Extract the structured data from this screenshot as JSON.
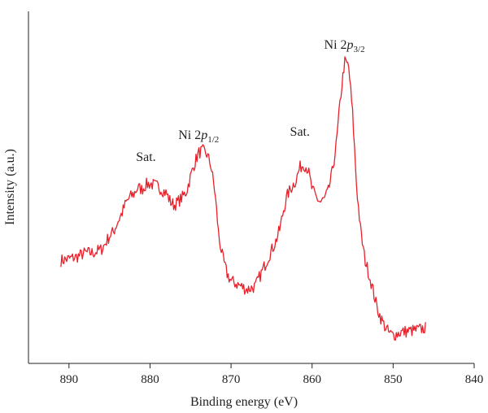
{
  "chart_data": {
    "type": "line",
    "title": "",
    "xlabel": "Binding energy (eV)",
    "ylabel": "Intensity (a.u.)",
    "xlim": [
      895,
      840
    ],
    "ylim": [
      0,
      100
    ],
    "x_reversed": true,
    "y_ticks_shown": false,
    "grid": false,
    "legend": "none",
    "xticks": [
      890,
      880,
      870,
      860,
      850,
      840
    ],
    "xtick_labels": [
      "890",
      "880",
      "870",
      "860",
      "850",
      "840"
    ],
    "line_color": "#e8202a",
    "annotations": [
      {
        "text": "Sat.",
        "x": 880.5,
        "y": 57.5
      },
      {
        "text": "Ni 2p1/2",
        "main": "Ni 2",
        "italic": "p",
        "sub": "1/2",
        "x": 874.0,
        "y": 63.7
      },
      {
        "text": "Sat.",
        "x": 861.5,
        "y": 64.7
      },
      {
        "text": "Ni 2p3/2",
        "main": "Ni 2",
        "italic": "p",
        "sub": "3/2",
        "x": 856.0,
        "y": 89.4
      }
    ],
    "series": [
      {
        "x": [
          891,
          890,
          889,
          888,
          887,
          886,
          885.5,
          885,
          884.5,
          884,
          883.5,
          883,
          882.5,
          882,
          881.5,
          881,
          880.5,
          880,
          879,
          878,
          877.5,
          877,
          876,
          875.5,
          875,
          874.5,
          874,
          873.5,
          873,
          872.5,
          872,
          871.5,
          871,
          870.5,
          870,
          869,
          868,
          867,
          866.5,
          866,
          865.5,
          865,
          864.5,
          864,
          863.5,
          863,
          862.5,
          862,
          861.5,
          861,
          860.5,
          860,
          859.5,
          859,
          858.5,
          858,
          857.5,
          857,
          856.5,
          856,
          855.5,
          855,
          854.5,
          854,
          853.5,
          853,
          852.5,
          852,
          851.5,
          851,
          850.5,
          850,
          849,
          848,
          847,
          846
        ],
        "y": [
          29.2,
          29.7,
          30.3,
          31.4,
          31.4,
          32.4,
          34.1,
          36.2,
          37.4,
          40.2,
          42.5,
          45.5,
          47.2,
          48.1,
          50.0,
          49.4,
          50.8,
          51.1,
          50.2,
          48.4,
          46.0,
          44.9,
          47.2,
          48.9,
          53.1,
          56.9,
          59.8,
          60.4,
          59.5,
          56.4,
          48.7,
          35.9,
          29.7,
          25.5,
          23.4,
          22.2,
          21.0,
          21.9,
          24.5,
          27.0,
          29.7,
          32.1,
          34.6,
          38.0,
          43.9,
          48.1,
          50.2,
          52.0,
          55.7,
          56.6,
          55.1,
          49.4,
          47.2,
          45.8,
          46.6,
          48.9,
          54.5,
          62.4,
          75.3,
          85.7,
          84.5,
          71.0,
          50.2,
          37.4,
          29.7,
          25.5,
          21.0,
          16.0,
          12.8,
          10.4,
          8.6,
          8.0,
          8.9,
          9.2,
          9.5,
          10.1
        ]
      }
    ]
  }
}
